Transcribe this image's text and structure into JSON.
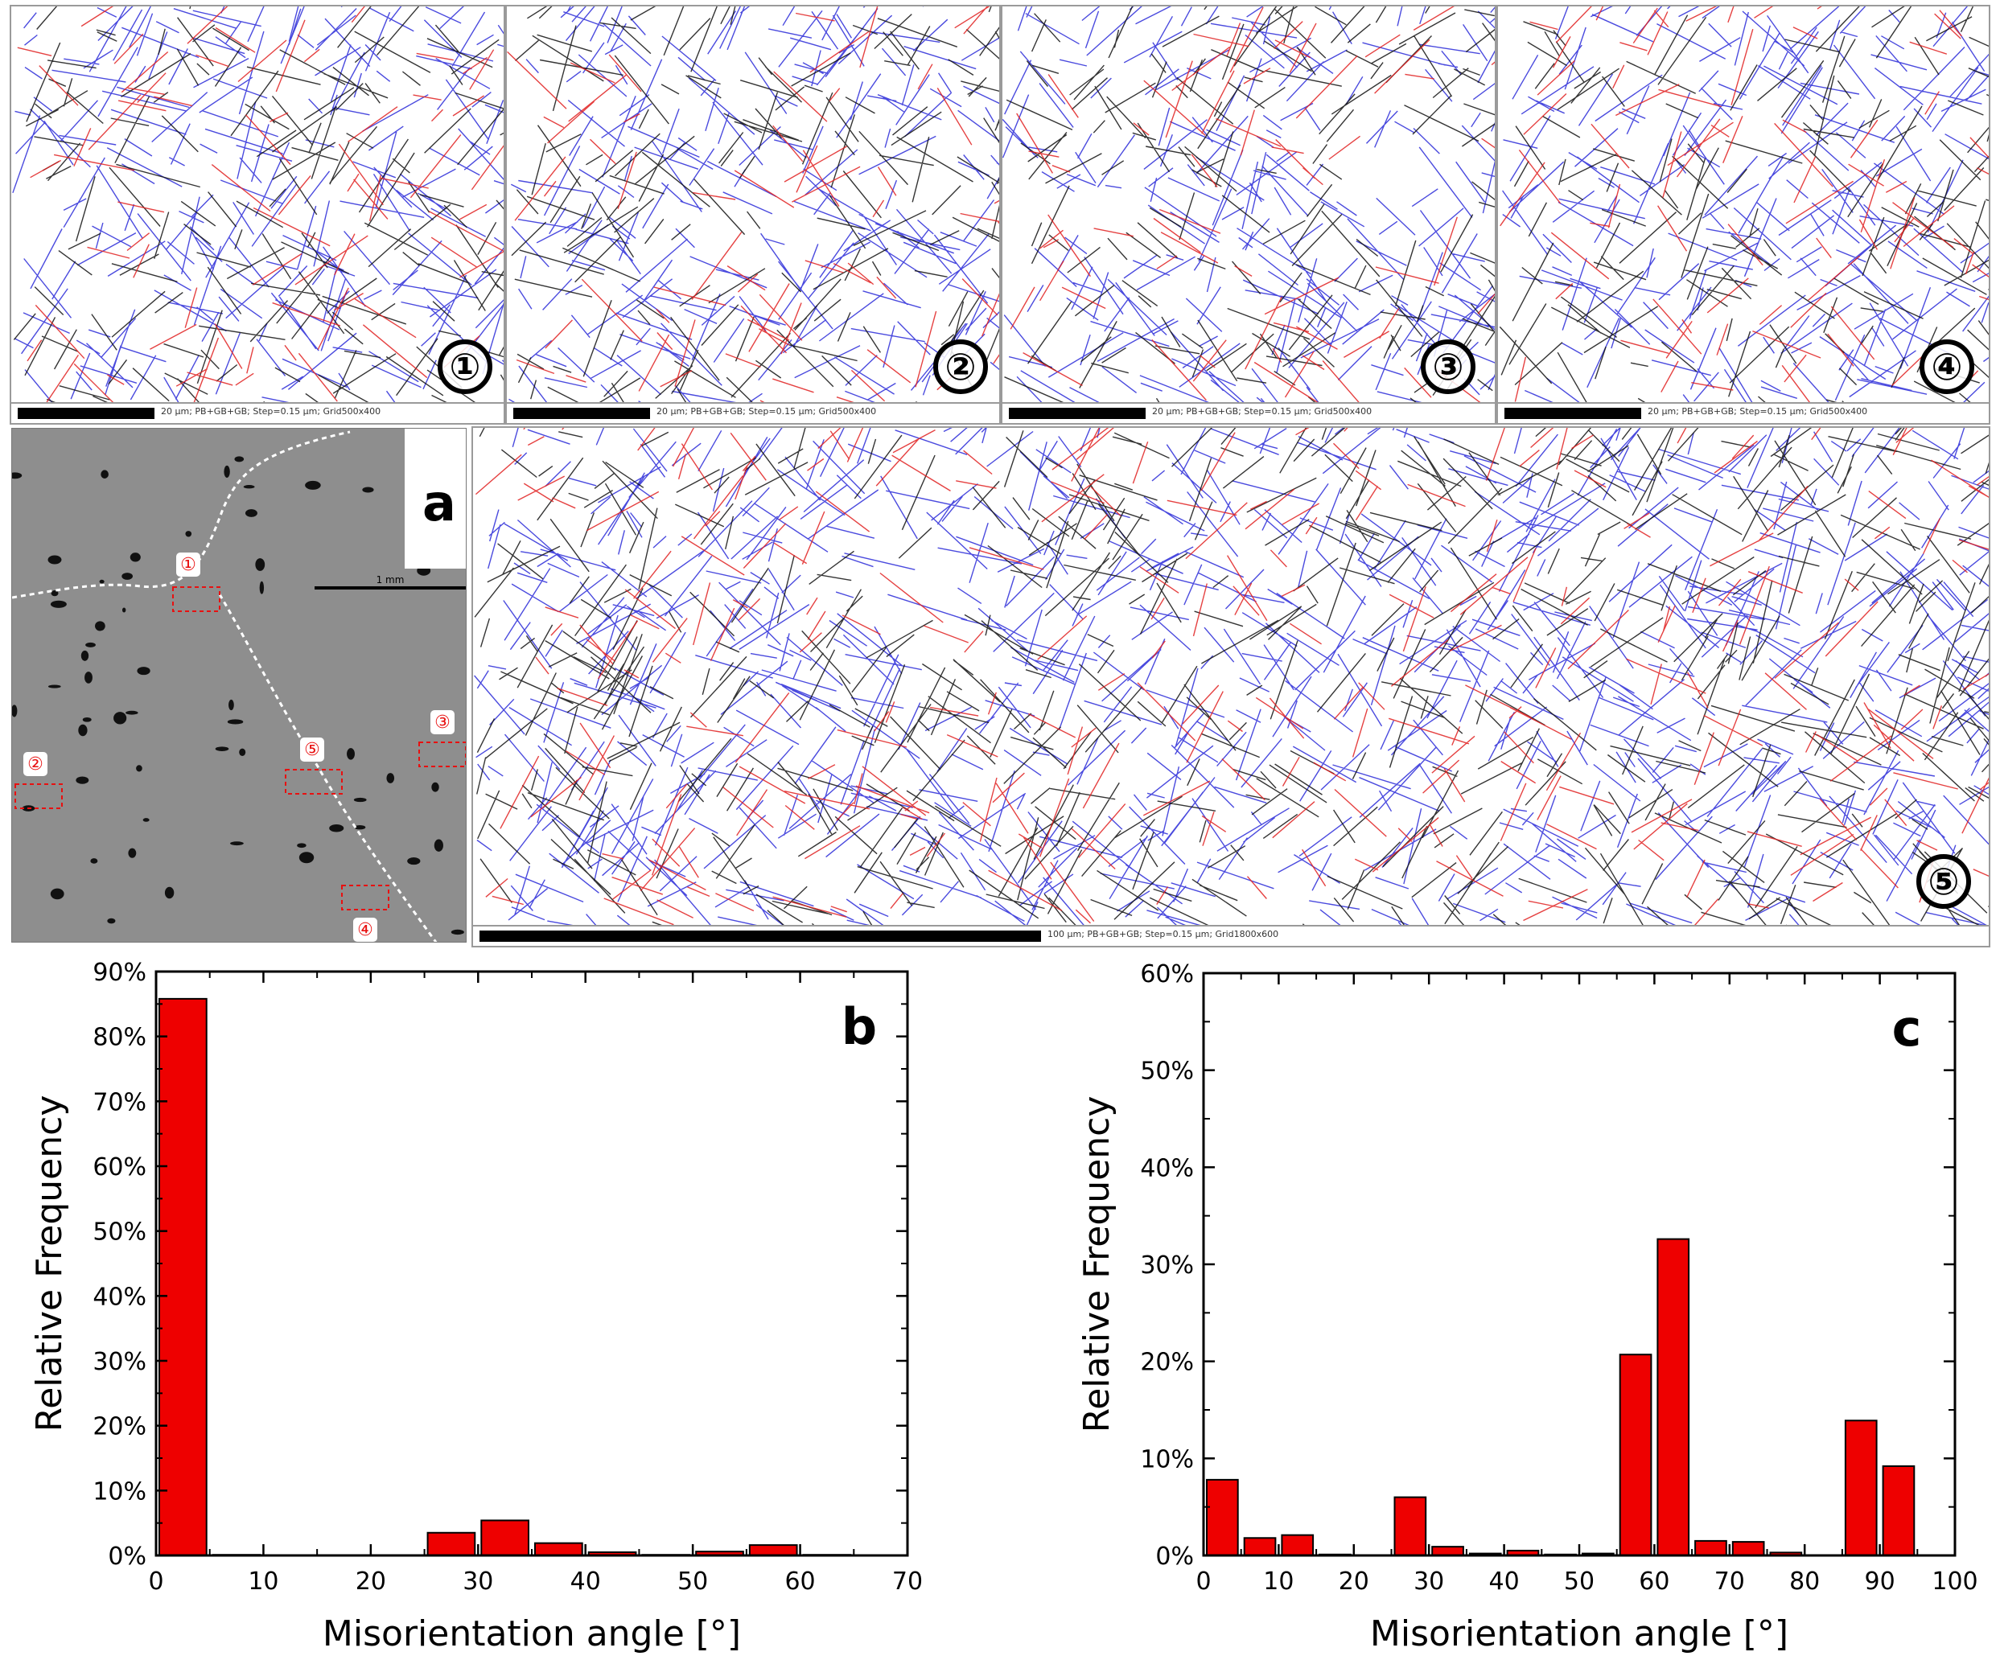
{
  "panels": {
    "map1": {
      "label": "①",
      "scale_text": "20 µm; PB+GB+GB; Step=0.15 µm; Grid500x400"
    },
    "map2": {
      "label": "②",
      "scale_text": "20 µm; PB+GB+GB; Step=0.15 µm; Grid500x400"
    },
    "map3": {
      "label": "③",
      "scale_text": "20 µm; PB+GB+GB; Step=0.15 µm; Grid500x400"
    },
    "map4": {
      "label": "④",
      "scale_text": "20 µm; PB+GB+GB; Step=0.15 µm; Grid500x400"
    },
    "map5": {
      "label": "⑤",
      "scale_text": "100 µm; PB+GB+GB; Step=0.15 µm; Grid1800x600"
    },
    "sem": {
      "letter": "a",
      "scale_text": "1 mm",
      "markers": [
        "①",
        "②",
        "③",
        "④",
        "⑤"
      ]
    }
  },
  "colors": {
    "bar_fill": "#ee0000",
    "bar_edge": "#000000",
    "boundary_blue": "#2a2ad8",
    "boundary_red": "#e02020",
    "boundary_black": "#111111",
    "sem_gray": "#8e8e8e",
    "marker_red": "#e81010"
  },
  "chart_data": [
    {
      "type": "bar",
      "panel_letter": "b",
      "xlabel": "Misorientation angle [°]",
      "ylabel": "Relative Frequency",
      "xlim": [
        0,
        70
      ],
      "ylim": [
        0,
        90
      ],
      "xticks": [
        "0",
        "10",
        "20",
        "30",
        "40",
        "50",
        "60",
        "70"
      ],
      "yticks": [
        "0%",
        "10%",
        "20%",
        "30%",
        "40%",
        "50%",
        "60%",
        "70%",
        "80%",
        "90%"
      ],
      "bin_width": 5,
      "bin_centers": [
        2.5,
        7.5,
        12.5,
        17.5,
        22.5,
        27.5,
        32.5,
        37.5,
        42.5,
        47.5,
        52.5,
        57.5,
        62.5
      ],
      "values": [
        85.8,
        0.1,
        0,
        0,
        0,
        3.5,
        5.4,
        1.9,
        0.5,
        0.1,
        0.6,
        1.6,
        0.1
      ]
    },
    {
      "type": "bar",
      "panel_letter": "c",
      "xlabel": "Misorientation angle [°]",
      "ylabel": "Relative Frequency",
      "xlim": [
        0,
        100
      ],
      "ylim": [
        0,
        60
      ],
      "xticks": [
        "0",
        "10",
        "20",
        "30",
        "40",
        "50",
        "60",
        "70",
        "80",
        "90",
        "100"
      ],
      "yticks": [
        "0%",
        "10%",
        "20%",
        "30%",
        "40%",
        "50%",
        "60%"
      ],
      "bin_width": 5,
      "bin_centers": [
        2.5,
        7.5,
        12.5,
        17.5,
        22.5,
        27.5,
        32.5,
        37.5,
        42.5,
        47.5,
        52.5,
        57.5,
        62.5,
        67.5,
        72.5,
        77.5,
        82.5,
        87.5,
        92.5
      ],
      "values": [
        7.8,
        1.8,
        2.1,
        0.1,
        0,
        6.0,
        0.9,
        0.2,
        0.5,
        0.1,
        0.2,
        20.7,
        32.6,
        1.5,
        1.4,
        0.3,
        0,
        13.9,
        9.2
      ]
    }
  ]
}
